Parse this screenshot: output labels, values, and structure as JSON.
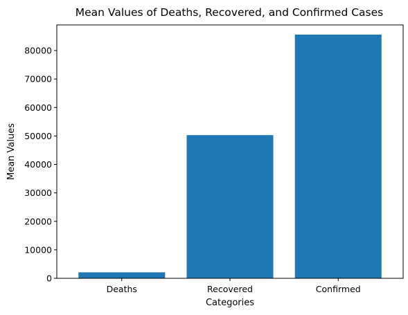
{
  "chart_data": {
    "type": "bar",
    "title": "Mean Values of Deaths, Recovered, and Confirmed Cases",
    "xlabel": "Categories",
    "ylabel": "Mean Values",
    "categories": [
      "Deaths",
      "Recovered",
      "Confirmed"
    ],
    "values": [
      2100,
      50300,
      85600
    ],
    "ylim": [
      0,
      89000
    ],
    "yticks": [
      0,
      10000,
      20000,
      30000,
      40000,
      50000,
      60000,
      70000,
      80000
    ],
    "grid": false,
    "legend": "none",
    "bar_color": "#1f77b4"
  }
}
